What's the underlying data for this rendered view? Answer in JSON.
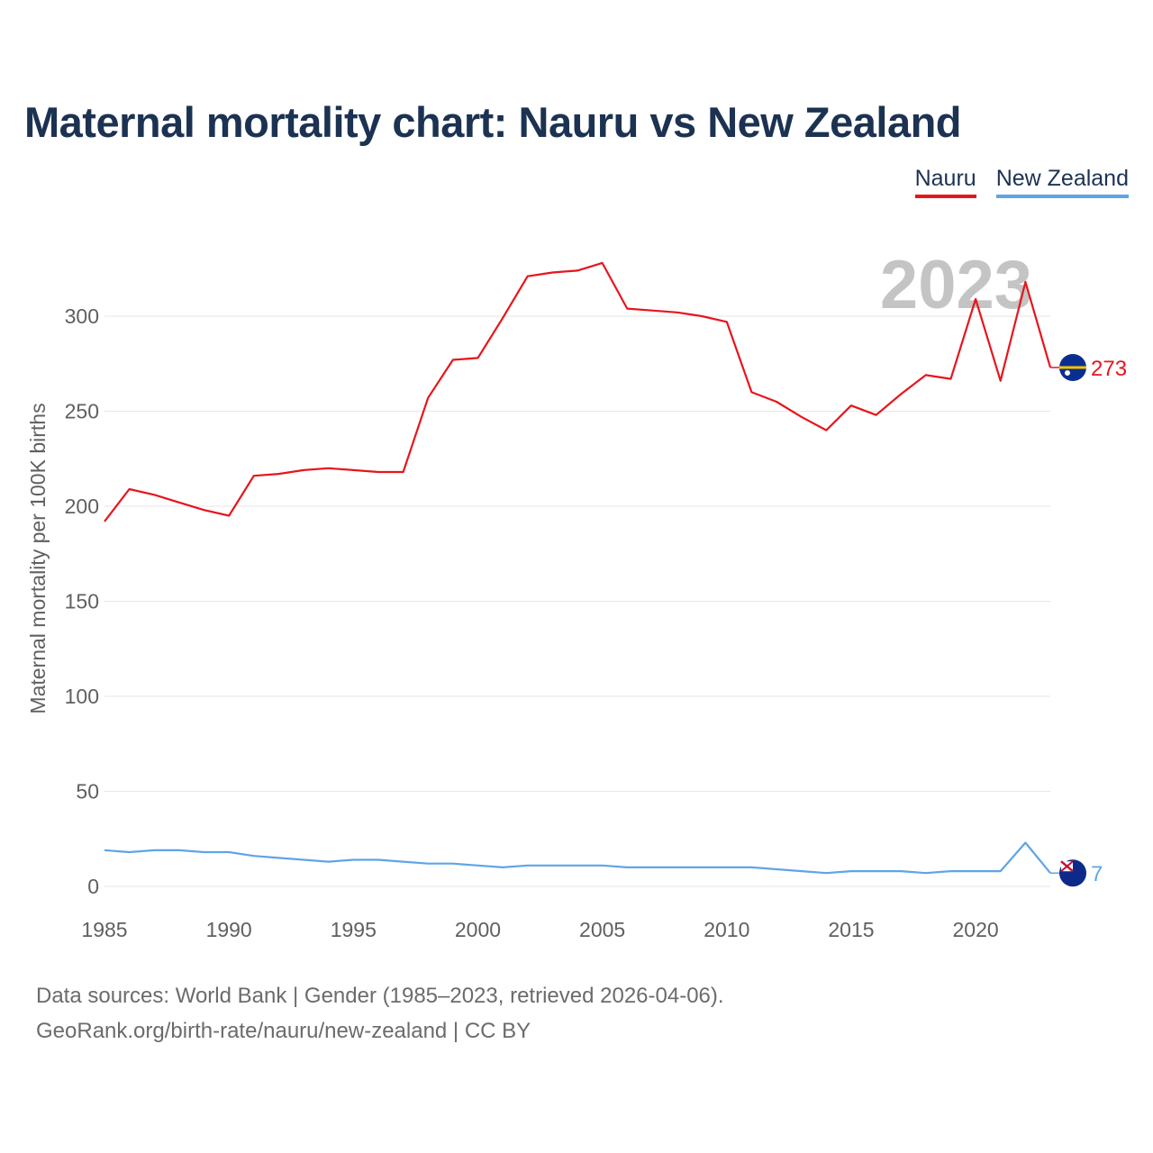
{
  "title": "Maternal mortality chart: Nauru vs New Zealand",
  "legend": [
    {
      "label": "Nauru",
      "color": "#e8141c"
    },
    {
      "label": "New Zealand",
      "color": "#5ea5e6"
    }
  ],
  "footer": {
    "line1": "Data sources: World Bank | Gender (1985–2023, retrieved 2026-04-06).",
    "line2": "GeoRank.org/birth-rate/nauru/new-zealand | CC BY"
  },
  "chart_data": {
    "type": "line",
    "title": "Maternal mortality chart: Nauru vs New Zealand",
    "ylabel": "Maternal mortality per 100K births",
    "xlabel": "",
    "year_label": "2023",
    "xlim": [
      1985,
      2023
    ],
    "ylim": [
      0,
      320
    ],
    "xticks": [
      1985,
      1990,
      1995,
      2000,
      2005,
      2010,
      2015,
      2020
    ],
    "yticks": [
      0,
      50,
      100,
      150,
      200,
      250,
      300
    ],
    "x": [
      1985,
      1986,
      1987,
      1988,
      1989,
      1990,
      1991,
      1992,
      1993,
      1994,
      1995,
      1996,
      1997,
      1998,
      1999,
      2000,
      2001,
      2002,
      2003,
      2004,
      2005,
      2006,
      2007,
      2008,
      2009,
      2010,
      2011,
      2012,
      2013,
      2014,
      2015,
      2016,
      2017,
      2018,
      2019,
      2020,
      2021,
      2022,
      2023
    ],
    "series": [
      {
        "name": "Nauru",
        "color": "#e8141c",
        "end_label": "273",
        "flag": "nauru-flag-icon",
        "values": [
          192,
          209,
          206,
          202,
          198,
          195,
          216,
          217,
          219,
          220,
          219,
          218,
          218,
          257,
          277,
          278,
          299,
          321,
          323,
          324,
          328,
          304,
          303,
          302,
          300,
          297,
          260,
          255,
          247,
          240,
          253,
          248,
          259,
          269,
          267,
          309,
          266,
          318,
          273
        ]
      },
      {
        "name": "New Zealand",
        "color": "#5ea5e6",
        "end_label": "7",
        "flag": "new-zealand-flag-icon",
        "values": [
          19,
          18,
          19,
          19,
          18,
          18,
          16,
          15,
          14,
          13,
          14,
          14,
          13,
          12,
          12,
          11,
          10,
          11,
          11,
          11,
          11,
          10,
          10,
          10,
          10,
          10,
          10,
          9,
          8,
          7,
          8,
          8,
          8,
          7,
          8,
          8,
          8,
          23,
          7
        ]
      }
    ]
  }
}
